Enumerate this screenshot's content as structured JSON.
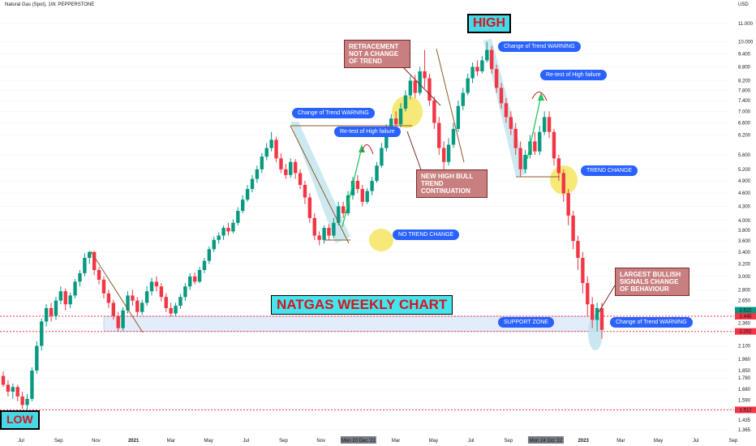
{
  "header": {
    "symbol_line": "Natural Gas (Spot), 1W, PEPPERSTONE",
    "currency": "USD"
  },
  "chart_data": {
    "type": "candlestick",
    "title": "NATGAS WEEKLY CHART",
    "y_axis_scale": "log",
    "ylim": [
      1.365,
      11.8
    ],
    "y_ticks": [
      "11.000",
      "10.000",
      "9.400",
      "8.800",
      "8.200",
      "7.800",
      "7.400",
      "7.000",
      "6.600",
      "6.200",
      "5.600",
      "5.200",
      "4.900",
      "4.600",
      "4.300",
      "4.000",
      "3.800",
      "3.600",
      "3.400",
      "3.200",
      "3.000",
      "2.800",
      "2.650",
      "2.500",
      "2.360",
      "2.100",
      "1.960",
      "1.850",
      "1.780",
      "1.680",
      "1.590",
      "1.500",
      "1.435",
      "1.365"
    ],
    "x_ticks": [
      "Jul",
      "Sep",
      "Nov",
      "2021",
      "Mar",
      "May",
      "Jul",
      "Sep",
      "Nov",
      "Mon 20 Dec '21",
      "Mar",
      "May",
      "Jul",
      "Sep",
      "Mon 24 Oct '22",
      "2023",
      "Mar",
      "May",
      "Jul",
      "Sep"
    ],
    "price_labels": [
      {
        "text": "2.522",
        "color": "#089981"
      },
      {
        "text": "2.445",
        "color": "#f23645"
      },
      {
        "text": "2.262",
        "color": "#f23645"
      },
      {
        "text": "1.512",
        "color": "#f23645"
      }
    ],
    "horizontal_levels": [
      2.445,
      2.262,
      1.512
    ],
    "support_zone": [
      2.262,
      2.445
    ],
    "candles": [
      [
        1.8,
        1.72,
        1.84,
        1.7
      ],
      [
        1.72,
        1.66,
        1.76,
        1.62
      ],
      [
        1.66,
        1.7,
        1.73,
        1.6
      ],
      [
        1.7,
        1.62,
        1.72,
        1.58
      ],
      [
        1.62,
        1.55,
        1.66,
        1.52
      ],
      [
        1.55,
        1.6,
        1.64,
        1.51
      ],
      [
        1.6,
        1.85,
        1.88,
        1.58
      ],
      [
        1.85,
        2.1,
        2.15,
        1.82
      ],
      [
        2.1,
        2.38,
        2.42,
        2.05
      ],
      [
        2.38,
        2.55,
        2.6,
        2.32
      ],
      [
        2.55,
        2.45,
        2.62,
        2.38
      ],
      [
        2.45,
        2.65,
        2.7,
        2.4
      ],
      [
        2.65,
        2.78,
        2.85,
        2.6
      ],
      [
        2.78,
        2.6,
        2.82,
        2.52
      ],
      [
        2.6,
        2.72,
        2.76,
        2.55
      ],
      [
        2.72,
        2.92,
        2.96,
        2.68
      ],
      [
        2.92,
        3.05,
        3.1,
        2.85
      ],
      [
        3.05,
        3.3,
        3.38,
        3.0
      ],
      [
        3.3,
        3.4,
        3.42,
        3.2
      ],
      [
        3.4,
        3.1,
        3.42,
        3.02
      ],
      [
        3.1,
        2.95,
        3.15,
        2.88
      ],
      [
        2.95,
        2.75,
        3.0,
        2.68
      ],
      [
        2.75,
        2.62,
        2.8,
        2.55
      ],
      [
        2.62,
        2.45,
        2.66,
        2.4
      ],
      [
        2.45,
        2.3,
        2.5,
        2.26
      ],
      [
        2.3,
        2.52,
        2.56,
        2.27
      ],
      [
        2.52,
        2.72,
        2.78,
        2.48
      ],
      [
        2.72,
        2.65,
        2.8,
        2.58
      ],
      [
        2.65,
        2.5,
        2.7,
        2.45
      ],
      [
        2.5,
        2.62,
        2.66,
        2.46
      ],
      [
        2.62,
        2.78,
        2.85,
        2.58
      ],
      [
        2.78,
        2.92,
        2.98,
        2.72
      ],
      [
        2.92,
        2.85,
        3.0,
        2.78
      ],
      [
        2.85,
        2.7,
        2.9,
        2.64
      ],
      [
        2.7,
        2.55,
        2.75,
        2.5
      ],
      [
        2.55,
        2.48,
        2.62,
        2.44
      ],
      [
        2.48,
        2.58,
        2.62,
        2.44
      ],
      [
        2.58,
        2.7,
        2.74,
        2.54
      ],
      [
        2.7,
        2.85,
        2.9,
        2.65
      ],
      [
        2.85,
        3.0,
        3.05,
        2.8
      ],
      [
        3.0,
        2.92,
        3.06,
        2.88
      ],
      [
        2.92,
        3.1,
        3.15,
        2.9
      ],
      [
        3.1,
        3.25,
        3.3,
        3.05
      ],
      [
        3.25,
        3.45,
        3.5,
        3.2
      ],
      [
        3.45,
        3.62,
        3.68,
        3.4
      ],
      [
        3.62,
        3.7,
        3.76,
        3.55
      ],
      [
        3.7,
        3.85,
        3.9,
        3.62
      ],
      [
        3.85,
        3.78,
        3.95,
        3.7
      ],
      [
        3.78,
        3.95,
        4.02,
        3.74
      ],
      [
        3.95,
        4.2,
        4.28,
        3.9
      ],
      [
        4.2,
        4.45,
        4.55,
        4.15
      ],
      [
        4.45,
        4.7,
        4.8,
        4.4
      ],
      [
        4.7,
        4.95,
        5.05,
        4.62
      ],
      [
        4.95,
        5.2,
        5.3,
        4.85
      ],
      [
        5.2,
        5.55,
        5.65,
        5.1
      ],
      [
        5.55,
        5.8,
        5.95,
        5.45
      ],
      [
        5.8,
        6.05,
        6.3,
        5.7
      ],
      [
        6.05,
        5.5,
        6.15,
        5.4
      ],
      [
        5.5,
        5.2,
        5.65,
        5.1
      ],
      [
        5.2,
        5.05,
        5.35,
        4.95
      ],
      [
        5.05,
        5.4,
        5.5,
        4.98
      ],
      [
        5.4,
        5.1,
        5.48,
        4.95
      ],
      [
        5.1,
        4.8,
        5.2,
        4.7
      ],
      [
        4.8,
        4.5,
        4.9,
        4.35
      ],
      [
        4.5,
        4.05,
        4.6,
        3.95
      ],
      [
        4.05,
        3.7,
        4.15,
        3.62
      ],
      [
        3.7,
        3.62,
        3.78,
        3.52
      ],
      [
        3.62,
        3.85,
        3.9,
        3.55
      ],
      [
        3.85,
        3.7,
        3.92,
        3.62
      ],
      [
        3.7,
        3.95,
        4.05,
        3.65
      ],
      [
        3.95,
        4.3,
        4.4,
        3.9
      ],
      [
        4.3,
        4.15,
        4.4,
        4.05
      ],
      [
        4.15,
        4.55,
        4.65,
        4.1
      ],
      [
        4.55,
        4.9,
        5.0,
        4.45
      ],
      [
        4.9,
        4.7,
        5.05,
        4.6
      ],
      [
        4.7,
        4.4,
        4.8,
        4.3
      ],
      [
        4.4,
        4.65,
        4.72,
        4.35
      ],
      [
        4.65,
        4.9,
        5.0,
        4.55
      ],
      [
        4.9,
        5.3,
        5.4,
        4.85
      ],
      [
        5.3,
        5.8,
        5.95,
        5.25
      ],
      [
        5.8,
        6.4,
        6.55,
        5.7
      ],
      [
        6.4,
        6.75,
        6.9,
        6.3
      ],
      [
        6.75,
        6.55,
        7.0,
        6.4
      ],
      [
        6.55,
        7.1,
        7.3,
        6.45
      ],
      [
        7.1,
        7.6,
        7.8,
        7.0
      ],
      [
        7.6,
        8.2,
        8.4,
        7.45
      ],
      [
        8.2,
        7.7,
        8.45,
        7.5
      ],
      [
        7.7,
        8.6,
        8.8,
        7.6
      ],
      [
        8.6,
        8.3,
        9.6,
        7.9
      ],
      [
        8.3,
        7.4,
        8.5,
        7.2
      ],
      [
        7.4,
        6.6,
        7.55,
        6.4
      ],
      [
        6.6,
        5.8,
        6.8,
        5.6
      ],
      [
        5.8,
        5.4,
        6.0,
        5.2
      ],
      [
        5.4,
        5.9,
        6.1,
        5.3
      ],
      [
        5.9,
        6.4,
        6.6,
        5.8
      ],
      [
        6.4,
        7.2,
        7.4,
        6.3
      ],
      [
        7.2,
        7.7,
        7.9,
        7.05
      ],
      [
        7.7,
        8.3,
        8.5,
        7.6
      ],
      [
        8.3,
        8.8,
        9.0,
        8.1
      ],
      [
        8.8,
        8.6,
        9.1,
        8.4
      ],
      [
        8.6,
        9.1,
        9.3,
        8.5
      ],
      [
        9.1,
        9.6,
        10.0,
        9.0
      ],
      [
        9.6,
        8.7,
        9.8,
        8.5
      ],
      [
        8.7,
        7.9,
        8.9,
        7.7
      ],
      [
        7.9,
        7.3,
        8.1,
        7.1
      ],
      [
        7.3,
        6.8,
        7.5,
        6.6
      ],
      [
        6.8,
        6.4,
        7.0,
        6.2
      ],
      [
        6.4,
        5.8,
        6.6,
        5.6
      ],
      [
        5.8,
        5.2,
        6.0,
        5.0
      ],
      [
        5.2,
        5.6,
        5.75,
        5.1
      ],
      [
        5.6,
        6.0,
        6.2,
        5.5
      ],
      [
        6.0,
        5.7,
        6.3,
        5.6
      ],
      [
        5.7,
        6.3,
        6.5,
        5.6
      ],
      [
        6.3,
        6.8,
        7.0,
        6.2
      ],
      [
        6.8,
        6.3,
        7.0,
        6.1
      ],
      [
        6.3,
        5.5,
        6.4,
        5.3
      ],
      [
        5.5,
        5.1,
        5.6,
        4.9
      ],
      [
        5.1,
        4.6,
        5.2,
        4.4
      ],
      [
        4.6,
        4.1,
        4.7,
        3.9
      ],
      [
        4.1,
        3.6,
        4.2,
        3.45
      ],
      [
        3.6,
        3.3,
        3.7,
        3.1
      ],
      [
        3.3,
        2.9,
        3.4,
        2.75
      ],
      [
        2.9,
        2.6,
        3.0,
        2.45
      ],
      [
        2.6,
        2.4,
        2.7,
        2.3
      ],
      [
        2.4,
        2.55,
        2.62,
        2.26
      ],
      [
        2.55,
        2.28,
        2.62,
        2.18
      ]
    ]
  },
  "annotations": {
    "title": "NATGAS WEEKLY CHART",
    "high_label": "HIGH",
    "low_label": "LOW",
    "pills": {
      "cotw1": "Change of Trend WARNING",
      "retest1": "Re-test of High failure",
      "no_trend_change": "NO TREND CHANGE",
      "cotw2": "Change of Trend WARNING",
      "retest2": "Re-test of High failure",
      "trend_change": "TREND CHANGE",
      "support_zone": "SUPPORT ZONE",
      "cotw3": "Change of Trend WARNING"
    },
    "red_boxes": {
      "retracement": "RETRACEMENT NOT A CHANGE OF TREND",
      "new_high": "NEW HIGH BULL TREND CONTINUATION",
      "largest_bullish": "LARGEST BULLISH SIGNALS CHANGE OF BEHAVIOUR"
    }
  },
  "colors": {
    "up": "#089981",
    "down": "#f23645",
    "pill": "#2962ff",
    "red_box": "#c97f7f",
    "cyan": "#45d9e8",
    "yellow": "#f5e560"
  }
}
